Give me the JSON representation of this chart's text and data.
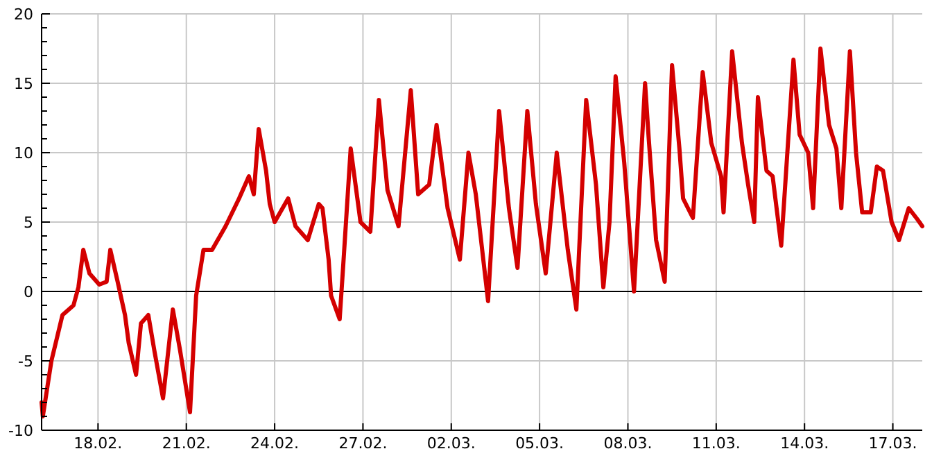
{
  "chart_data": {
    "type": "line",
    "x": [
      "--02-16T02:00",
      "--02-16T03:00",
      "--02-16T10:00",
      "--02-16T19:00",
      "--02-17T04:00",
      "--02-17T08:00",
      "--02-17T12:00",
      "--02-17T17:00",
      "--02-18T01:00",
      "--02-18T07:00",
      "--02-18T10:00",
      "--02-18T16:00",
      "--02-18T22:00",
      "--02-19T01:00",
      "--02-19T07:00",
      "--02-19T11:00",
      "--02-19T17:00",
      "--02-19T22:00",
      "--02-20T05:00",
      "--02-20T13:00",
      "--02-20T19:00",
      "--02-21T03:00",
      "--02-21T08:00",
      "--02-21T14:00",
      "--02-21T21:00",
      "--02-22T08:00",
      "--02-22T19:00",
      "--02-23T03:00",
      "--02-23T07:00",
      "--02-23T11:00",
      "--02-23T17:00",
      "--02-23T20:00",
      "--02-24T00:00",
      "--02-24T11:00",
      "--02-24T17:00",
      "--02-25T03:00",
      "--02-25T12:00",
      "--02-25T15:00",
      "--02-25T20:00",
      "--02-25T22:00",
      "--02-26T05:00",
      "--02-26T08:00",
      "--02-26T14:00",
      "--02-26T22:00",
      "--02-27T06:00",
      "--02-27T13:00",
      "--02-27T20:00",
      "--02-28T05:00",
      "--02-28T15:00",
      "--02-28T21:00",
      "--03-01T06:00",
      "--03-01T12:00",
      "--03-01T21:00",
      "--03-02T07:00",
      "--03-02T14:00",
      "--03-02T20:00",
      "--03-03T06:00",
      "--03-03T15:00",
      "--03-03T23:00",
      "--03-04T06:00",
      "--03-04T14:00",
      "--03-04T21:00",
      "--03-05T05:00",
      "--03-05T14:00",
      "--03-05T23:00",
      "--03-06T06:00",
      "--03-06T14:00",
      "--03-06T22:00",
      "--03-07T04:00",
      "--03-07T09:00",
      "--03-07T14:00",
      "--03-07T21:00",
      "--03-08T05:00",
      "--03-08T14:00",
      "--03-08T17:00",
      "--03-08T23:00",
      "--03-09T06:00",
      "--03-09T12:00",
      "--03-09T18:00",
      "--03-09T21:00",
      "--03-10T05:00",
      "--03-10T13:00",
      "--03-10T20:00",
      "--03-11T04:00",
      "--03-11T06:00",
      "--03-11T13:00",
      "--03-11T21:00",
      "--03-12T02:00",
      "--03-12T07:00",
      "--03-12T10:00",
      "--03-12T17:00",
      "--03-12T22:00",
      "--03-13T05:00",
      "--03-13T15:00",
      "--03-13T20:00",
      "--03-14T03:00",
      "--03-14T07:00",
      "--03-14T13:00",
      "--03-14T20:00",
      "--03-15T02:00",
      "--03-15T06:00",
      "--03-15T13:00",
      "--03-15T18:00",
      "--03-15T23:00",
      "--03-16T06:00",
      "--03-16T11:00",
      "--03-16T16:00",
      "--03-16T23:00",
      "--03-17T05:00",
      "--03-17T13:00",
      "--03-17T20:00",
      "--03-18T00:00"
    ],
    "series": [
      {
        "color": "#d40000",
        "values": [
          -8,
          -9,
          -5,
          -1.7,
          -1,
          0.3,
          3,
          1.3,
          0.5,
          0.7,
          3,
          0.7,
          -1.7,
          -3.7,
          -6,
          -2.3,
          -1.7,
          -4.3,
          -7.7,
          -1.3,
          -4.3,
          -8.7,
          -0.3,
          3,
          3,
          4.7,
          6.7,
          8.3,
          7,
          11.7,
          8.7,
          6.3,
          5,
          6.7,
          4.7,
          3.7,
          6.3,
          6,
          2.3,
          -0.3,
          -2,
          2,
          10.3,
          5,
          4.3,
          13.8,
          7.3,
          4.7,
          14.5,
          7,
          7.7,
          12,
          6,
          2.3,
          10,
          7,
          -0.7,
          13,
          6,
          1.7,
          13,
          6.3,
          1.3,
          10,
          3,
          -1.3,
          13.8,
          7.7,
          0.3,
          5,
          15.5,
          9.3,
          0,
          15,
          11,
          3.7,
          0.7,
          16.3,
          10.3,
          6.7,
          5.3,
          15.8,
          10.7,
          8.3,
          5.7,
          17.3,
          10.7,
          7.7,
          5,
          14,
          8.7,
          8.3,
          3.3,
          16.7,
          11.3,
          10,
          6,
          17.5,
          12,
          10.3,
          6,
          17.3,
          10,
          5.7,
          5.7,
          9,
          8.7,
          5,
          3.7,
          6,
          5.2,
          4.7
        ]
      }
    ],
    "xlim": [
      "--02-16T02:00",
      "--03-18T00:00"
    ],
    "xticks": [
      {
        "value": "--02-18",
        "label": "18.02."
      },
      {
        "value": "--02-21",
        "label": "21.02."
      },
      {
        "value": "--02-24",
        "label": "24.02."
      },
      {
        "value": "--02-27",
        "label": "27.02."
      },
      {
        "value": "--03-02",
        "label": "02.03."
      },
      {
        "value": "--03-05",
        "label": "05.03."
      },
      {
        "value": "--03-08",
        "label": "08.03."
      },
      {
        "value": "--03-11",
        "label": "11.03."
      },
      {
        "value": "--03-14",
        "label": "14.03."
      },
      {
        "value": "--03-17",
        "label": "17.03."
      }
    ],
    "ylim": [
      -10,
      20
    ],
    "yticks": [
      -10,
      {
        "value": -9,
        "label": null
      },
      {
        "value": -8,
        "label": null
      },
      {
        "value": -7,
        "label": null
      },
      {
        "value": -6,
        "label": null
      },
      -5,
      {
        "value": -4,
        "label": null
      },
      {
        "value": -3,
        "label": null
      },
      {
        "value": -2,
        "label": null
      },
      {
        "value": -1,
        "label": null
      },
      0,
      {
        "value": 1,
        "label": null
      },
      {
        "value": 2,
        "label": null
      },
      {
        "value": 3,
        "label": null
      },
      {
        "value": 4,
        "label": null
      },
      5,
      {
        "value": 6,
        "label": null
      },
      {
        "value": 7,
        "label": null
      },
      {
        "value": 8,
        "label": null
      },
      {
        "value": 9,
        "label": null
      },
      10,
      {
        "value": 11,
        "label": null
      },
      {
        "value": 12,
        "label": null
      },
      {
        "value": 13,
        "label": null
      },
      {
        "value": 14,
        "label": null
      },
      15,
      {
        "value": 16,
        "label": null
      },
      {
        "value": 17,
        "label": null
      },
      {
        "value": 18,
        "label": null
      },
      {
        "value": 19,
        "label": null
      },
      20
    ],
    "ref_lines": [
      {
        "axis": "y",
        "value": 0,
        "color": "#000000"
      }
    ],
    "grid": true,
    "marker": "none",
    "line_style": "solid"
  }
}
